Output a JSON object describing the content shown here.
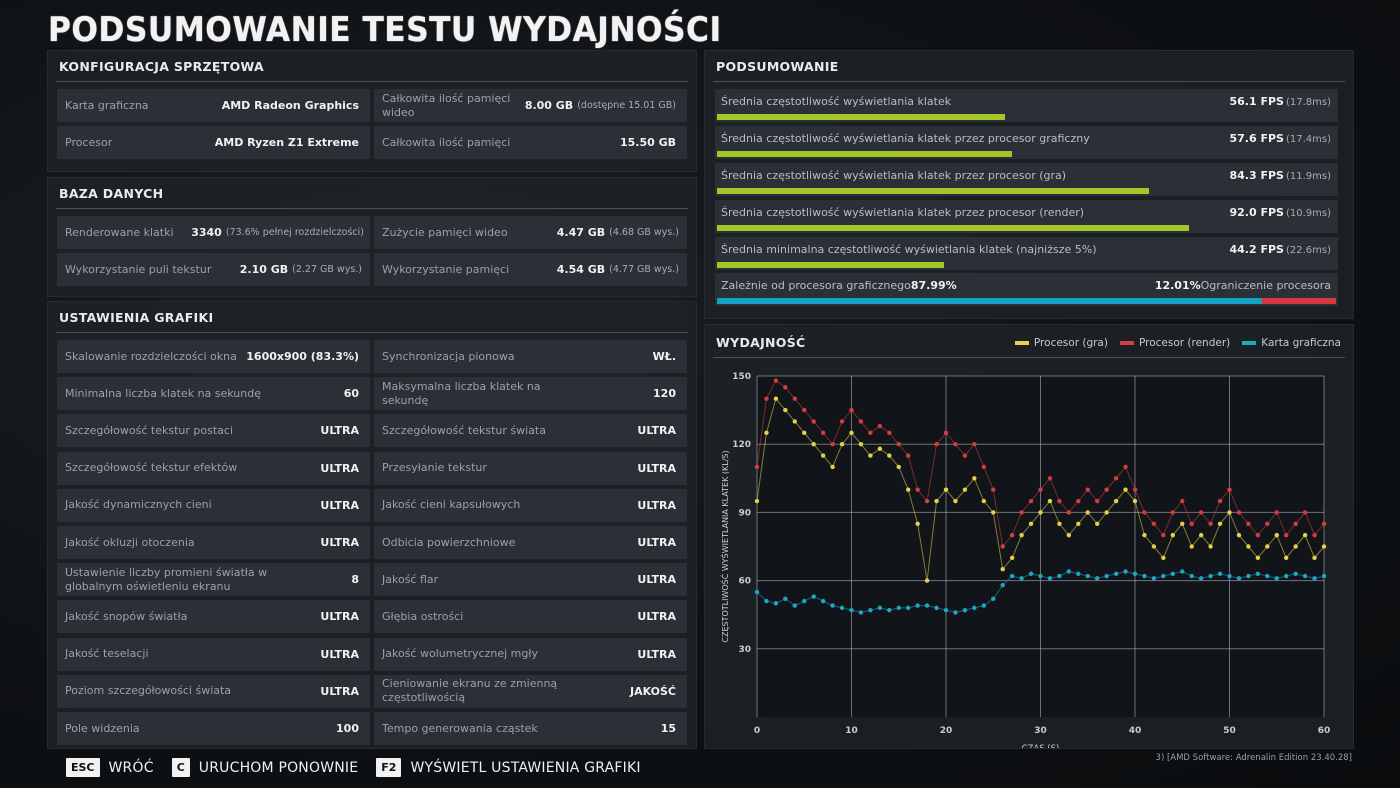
{
  "page_title": "PODSUMOWANIE TESTU WYDAJNOŚCI",
  "hardware": {
    "title": "KONFIGURACJA SPRZĘTOWA",
    "items": [
      {
        "label": "Karta graficzna",
        "value": "AMD Radeon Graphics",
        "sub": ""
      },
      {
        "label": "Całkowita ilość pamięci wideo",
        "value": "8.00 GB",
        "sub": "(dostępne 15.01 GB)"
      },
      {
        "label": "Procesor",
        "value": "AMD Ryzen Z1 Extreme",
        "sub": ""
      },
      {
        "label": "Całkowita ilość pamięci",
        "value": "15.50 GB",
        "sub": ""
      }
    ]
  },
  "database": {
    "title": "BAZA DANYCH",
    "items": [
      {
        "label": "Renderowane klatki",
        "value": "3340",
        "sub": "(73.6% pełnej rozdzielczości)"
      },
      {
        "label": "Zużycie pamięci wideo",
        "value": "4.47 GB",
        "sub": "(4.68 GB wys.)"
      },
      {
        "label": "Wykorzystanie puli tekstur",
        "value": "2.10 GB",
        "sub": "(2.27 GB wys.)"
      },
      {
        "label": "Wykorzystanie pamięci",
        "value": "4.54 GB",
        "sub": "(4.77 GB wys.)"
      }
    ]
  },
  "graphics": {
    "title": "USTAWIENIA GRAFIKI",
    "items": [
      {
        "label": "Skalowanie rozdzielczości okna",
        "value": "1600x900 (83.3%)"
      },
      {
        "label": "Synchronizacja pionowa",
        "value": "WŁ."
      },
      {
        "label": "Minimalna liczba klatek na sekundę",
        "value": "60"
      },
      {
        "label": "Maksymalna liczba klatek na sekundę",
        "value": "120"
      },
      {
        "label": "Szczegółowość tekstur postaci",
        "value": "ULTRA"
      },
      {
        "label": "Szczegółowość tekstur świata",
        "value": "ULTRA"
      },
      {
        "label": "Szczegółowość tekstur efektów",
        "value": "ULTRA"
      },
      {
        "label": "Przesyłanie tekstur",
        "value": "ULTRA"
      },
      {
        "label": "Jakość dynamicznych cieni",
        "value": "ULTRA"
      },
      {
        "label": "Jakość cieni kapsułowych",
        "value": "ULTRA"
      },
      {
        "label": "Jakość okluzji otoczenia",
        "value": "ULTRA"
      },
      {
        "label": "Odbicia powierzchniowe",
        "value": "ULTRA"
      },
      {
        "label": "Ustawienie liczby promieni światła w globalnym oświetleniu ekranu",
        "value": "8"
      },
      {
        "label": "Jakość flar",
        "value": "ULTRA"
      },
      {
        "label": "Jakość snopów światła",
        "value": "ULTRA"
      },
      {
        "label": "Głębia ostrości",
        "value": "ULTRA"
      },
      {
        "label": "Jakość teselacji",
        "value": "ULTRA"
      },
      {
        "label": "Jakość wolumetrycznej mgły",
        "value": "ULTRA"
      },
      {
        "label": "Poziom szczegółowości świata",
        "value": "ULTRA"
      },
      {
        "label": "Cieniowanie ekranu ze zmienną częstotliwością",
        "value": "JAKOŚĆ"
      },
      {
        "label": "Pole widzenia",
        "value": "100"
      },
      {
        "label": "Tempo generowania cząstek",
        "value": "15"
      }
    ]
  },
  "summary": {
    "title": "PODSUMOWANIE",
    "rows": [
      {
        "label": "Średnia częstotliwość wyświetlania klatek",
        "value": "56.1 FPS",
        "sub": "(17.8ms)",
        "fill": 0.465
      },
      {
        "label": "Średnia częstotliwość wyświetlania klatek przez procesor graficzny",
        "value": "57.6 FPS",
        "sub": "(17.4ms)",
        "fill": 0.477
      },
      {
        "label": "Średnia częstotliwość wyświetlania klatek przez procesor (gra)",
        "value": "84.3 FPS",
        "sub": "(11.9ms)",
        "fill": 0.698
      },
      {
        "label": "Średnia częstotliwość wyświetlania klatek przez procesor (render)",
        "value": "92.0 FPS",
        "sub": "(10.9ms)",
        "fill": 0.762
      },
      {
        "label": "Średnia minimalna częstotliwość wyświetlania klatek (najniższe 5%)",
        "value": "44.2 FPS",
        "sub": "(22.6ms)",
        "fill": 0.366
      }
    ],
    "bound": {
      "gpu_label": "Zależnie od procesora graficznego",
      "gpu_value": "87.99%",
      "cpu_value": "12.01%",
      "cpu_label": "Ograniczenie procesora",
      "gpu_fraction": 0.8799,
      "gpu_color": "#14a0c0",
      "cpu_color": "#d23a3f"
    }
  },
  "performance": {
    "title": "WYDAJNOŚĆ",
    "legend": [
      {
        "name": "Procesor (gra)",
        "color": "#e6cf4a"
      },
      {
        "name": "Procesor (render)",
        "color": "#d63d3d"
      },
      {
        "name": "Karta graficzna",
        "color": "#1fa6c2"
      }
    ]
  },
  "chart_data": {
    "type": "scatter",
    "xlabel": "CZAS (S)",
    "ylabel": "CZĘSTOTLIWOŚĆ WYŚWIETLANIA KLATEK (KL/S)",
    "xlim": [
      0,
      60
    ],
    "ylim": [
      0,
      150
    ],
    "x_ticks": [
      0,
      10,
      20,
      30,
      40,
      50,
      60
    ],
    "y_ticks": [
      30,
      60,
      90,
      120,
      150
    ],
    "grid": true,
    "legend_position": "top-right",
    "series": [
      {
        "name": "Procesor (gra)",
        "color": "#e6cf4a",
        "x": [
          0,
          1,
          2,
          3,
          4,
          5,
          6,
          7,
          8,
          9,
          10,
          11,
          12,
          13,
          14,
          15,
          16,
          17,
          18,
          19,
          20,
          21,
          22,
          23,
          24,
          25,
          26,
          27,
          28,
          29,
          30,
          31,
          32,
          33,
          34,
          35,
          36,
          37,
          38,
          39,
          40,
          41,
          42,
          43,
          44,
          45,
          46,
          47,
          48,
          49,
          50,
          51,
          52,
          53,
          54,
          55,
          56,
          57,
          58,
          59,
          60
        ],
        "y": [
          95,
          125,
          140,
          135,
          130,
          125,
          120,
          115,
          110,
          120,
          125,
          120,
          115,
          118,
          115,
          110,
          100,
          85,
          60,
          95,
          100,
          95,
          100,
          105,
          95,
          90,
          65,
          70,
          80,
          85,
          90,
          95,
          85,
          80,
          85,
          90,
          85,
          90,
          95,
          100,
          95,
          80,
          75,
          70,
          80,
          85,
          75,
          80,
          75,
          85,
          90,
          80,
          75,
          70,
          75,
          80,
          70,
          75,
          80,
          70,
          75
        ]
      },
      {
        "name": "Procesor (render)",
        "color": "#d63d3d",
        "x": [
          0,
          1,
          2,
          3,
          4,
          5,
          6,
          7,
          8,
          9,
          10,
          11,
          12,
          13,
          14,
          15,
          16,
          17,
          18,
          19,
          20,
          21,
          22,
          23,
          24,
          25,
          26,
          27,
          28,
          29,
          30,
          31,
          32,
          33,
          34,
          35,
          36,
          37,
          38,
          39,
          40,
          41,
          42,
          43,
          44,
          45,
          46,
          47,
          48,
          49,
          50,
          51,
          52,
          53,
          54,
          55,
          56,
          57,
          58,
          59,
          60
        ],
        "y": [
          110,
          140,
          148,
          145,
          140,
          135,
          130,
          125,
          120,
          130,
          135,
          130,
          125,
          128,
          125,
          120,
          115,
          100,
          95,
          120,
          125,
          120,
          115,
          120,
          110,
          100,
          75,
          80,
          90,
          95,
          100,
          105,
          95,
          90,
          95,
          100,
          95,
          100,
          105,
          110,
          100,
          90,
          85,
          80,
          90,
          95,
          85,
          90,
          85,
          95,
          100,
          90,
          85,
          80,
          85,
          90,
          80,
          85,
          90,
          80,
          85
        ]
      },
      {
        "name": "Karta graficzna",
        "color": "#1fa6c2",
        "x": [
          0,
          1,
          2,
          3,
          4,
          5,
          6,
          7,
          8,
          9,
          10,
          11,
          12,
          13,
          14,
          15,
          16,
          17,
          18,
          19,
          20,
          21,
          22,
          23,
          24,
          25,
          26,
          27,
          28,
          29,
          30,
          31,
          32,
          33,
          34,
          35,
          36,
          37,
          38,
          39,
          40,
          41,
          42,
          43,
          44,
          45,
          46,
          47,
          48,
          49,
          50,
          51,
          52,
          53,
          54,
          55,
          56,
          57,
          58,
          59,
          60
        ],
        "y": [
          55,
          51,
          50,
          52,
          49,
          51,
          53,
          51,
          49,
          48,
          47,
          46,
          47,
          48,
          47,
          48,
          48,
          49,
          49,
          48,
          47,
          46,
          47,
          48,
          49,
          52,
          58,
          62,
          61,
          63,
          62,
          61,
          62,
          64,
          63,
          62,
          61,
          62,
          63,
          64,
          63,
          62,
          61,
          62,
          63,
          64,
          62,
          61,
          62,
          63,
          62,
          61,
          62,
          63,
          62,
          61,
          62,
          63,
          62,
          61,
          62
        ]
      }
    ]
  },
  "footer": {
    "keys": [
      {
        "key": "ESC",
        "label": "WRÓĆ"
      },
      {
        "key": "C",
        "label": "URUCHOM PONOWNIE"
      },
      {
        "key": "F2",
        "label": "WYŚWIETL USTAWIENIA GRAFIKI"
      }
    ],
    "version": "3) [AMD Software: Adrenalin Edition 23.40.28]"
  }
}
